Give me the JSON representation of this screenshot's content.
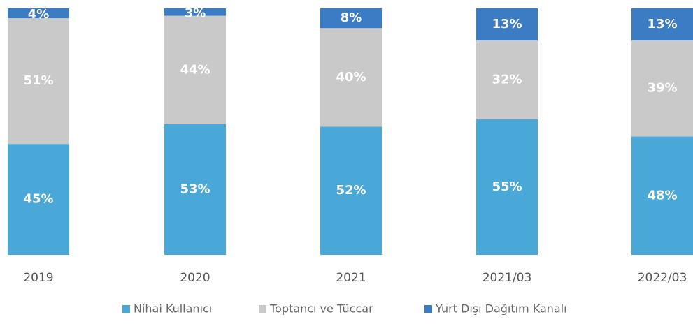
{
  "chart_data": {
    "type": "stacked_bar",
    "categories": [
      "2019",
      "2020",
      "2021",
      "2021/03",
      "2022/03"
    ],
    "series": [
      {
        "name": "Nihai Kullanıcı",
        "color": "#4aa8d8",
        "values": [
          45,
          53,
          52,
          55,
          48
        ],
        "value_labels": [
          "45%",
          "53%",
          "52%",
          "55%",
          "48%"
        ]
      },
      {
        "name": "Toptancı ve Tüccar",
        "color": "#c9c9c9",
        "values": [
          51,
          44,
          40,
          32,
          39
        ],
        "value_labels": [
          "51%",
          "44%",
          "40%",
          "32%",
          "39%"
        ]
      },
      {
        "name": "Yurt Dışı Dağıtım Kanalı",
        "color": "#3b7cc4",
        "values": [
          4,
          3,
          8,
          13,
          13
        ],
        "value_labels": [
          "4%",
          "3%",
          "8%",
          "13%",
          "13%"
        ]
      }
    ]
  }
}
